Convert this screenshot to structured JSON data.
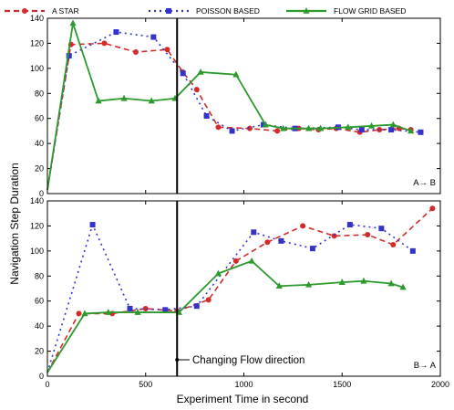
{
  "legend": [
    {
      "label": "A STAR",
      "color": "#d42a2a",
      "dash": "6,4",
      "marker": "circle"
    },
    {
      "label": "POISSON  BASED",
      "color": "#3333cc",
      "dash": "2,4",
      "marker": "square"
    },
    {
      "label": "FLOW GRID  BASED",
      "color": "#2c9a2c",
      "dash": "",
      "marker": "triangle"
    }
  ],
  "xlabel": "Experiment Time in second",
  "ylabel": "Navigation Step Duration",
  "vline_annotation": "Changing Flow direction",
  "chart_data": [
    {
      "type": "line",
      "panel": "top",
      "corner_label": "A→ B",
      "xlim": [
        0,
        2000
      ],
      "ylim": [
        0,
        140
      ],
      "yticks": [
        0,
        20,
        40,
        60,
        80,
        100,
        120,
        140
      ],
      "xticks": [
        0,
        500,
        1000,
        1500,
        2000
      ],
      "vline_x": 660,
      "series": [
        {
          "name": "A STAR",
          "x": [
            0,
            120,
            290,
            450,
            610,
            690,
            760,
            870,
            1030,
            1170,
            1280,
            1380,
            1470,
            1590,
            1690,
            1790,
            1850
          ],
          "y": [
            3,
            119,
            120,
            113,
            115,
            97,
            83,
            53,
            52,
            50,
            52,
            51,
            52,
            49,
            51,
            52,
            51
          ]
        },
        {
          "name": "POISSON  BASED",
          "x": [
            0,
            110,
            350,
            540,
            690,
            810,
            940,
            1100,
            1260,
            1480,
            1600,
            1750,
            1900
          ],
          "y": [
            3,
            110,
            129,
            125,
            96,
            62,
            50,
            55,
            52,
            53,
            51,
            51,
            49
          ]
        },
        {
          "name": "FLOW GRID  BASED",
          "x": [
            0,
            130,
            260,
            390,
            530,
            650,
            780,
            960,
            1110,
            1200,
            1330,
            1390,
            1530,
            1650,
            1760,
            1850
          ],
          "y": [
            3,
            136,
            74,
            76,
            74,
            76,
            97,
            95,
            55,
            52,
            52,
            52,
            53,
            54,
            55,
            50
          ]
        }
      ]
    },
    {
      "type": "line",
      "panel": "bottom",
      "corner_label": "B→ A",
      "xlim": [
        0,
        2000
      ],
      "ylim": [
        0,
        140
      ],
      "yticks": [
        0,
        20,
        40,
        60,
        80,
        100,
        120,
        140
      ],
      "xticks": [
        0,
        500,
        1000,
        1500,
        2000
      ],
      "xticklabels": [
        "0",
        "500",
        "1000",
        "1500",
        "2000"
      ],
      "vline_x": 660,
      "series": [
        {
          "name": "A STAR",
          "x": [
            0,
            160,
            330,
            500,
            660,
            820,
            960,
            1120,
            1300,
            1460,
            1630,
            1760,
            1960
          ],
          "y": [
            3,
            50,
            50,
            54,
            52,
            61,
            92,
            107,
            120,
            112,
            113,
            105,
            134
          ]
        },
        {
          "name": "POISSON  BASED",
          "x": [
            0,
            230,
            420,
            600,
            760,
            1050,
            1190,
            1350,
            1540,
            1700,
            1860
          ],
          "y": [
            3,
            121,
            54,
            53,
            56,
            115,
            108,
            102,
            121,
            118,
            100
          ]
        },
        {
          "name": "FLOW GRID  BASED",
          "x": [
            0,
            190,
            310,
            460,
            670,
            870,
            1040,
            1180,
            1330,
            1500,
            1610,
            1750,
            1810
          ],
          "y": [
            3,
            50,
            51,
            51,
            51,
            82,
            92,
            72,
            73,
            75,
            76,
            74,
            71
          ]
        }
      ]
    }
  ]
}
